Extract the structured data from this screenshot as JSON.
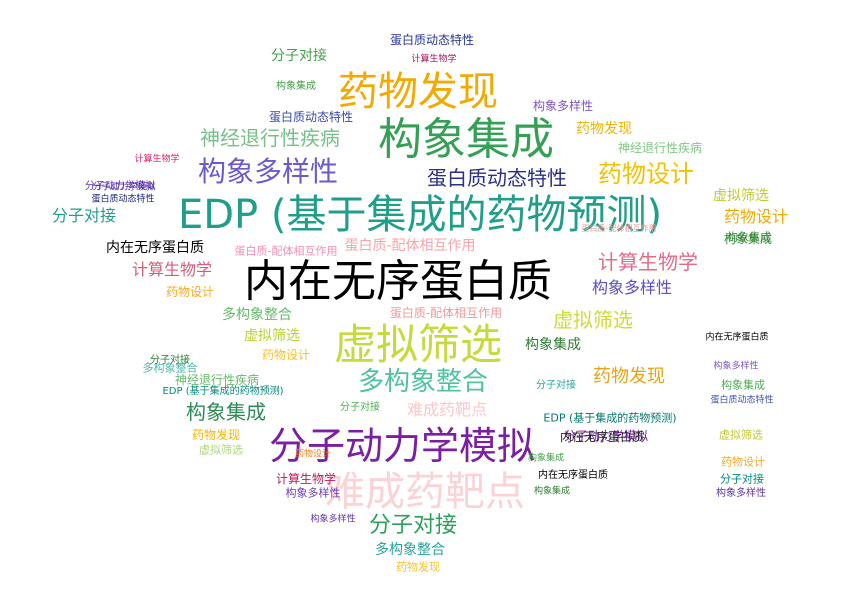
{
  "words": [
    {
      "text": "EDP (基于集成的药物预测)",
      "color": "#1f9e89"
    },
    {
      "text": "内在无序蛋白质",
      "color": "#000000"
    },
    {
      "text": "构象集成",
      "color": "#35a055"
    },
    {
      "text": "药物发现",
      "color": "#f2a900"
    },
    {
      "text": "虚拟筛选",
      "color": "#c7d93d"
    },
    {
      "text": "分子动力学模拟",
      "color": "#7b1fa2"
    },
    {
      "text": "难成药靶点",
      "color": "#fbd3d6"
    },
    {
      "text": "构象多样性",
      "color": "#6a5acd"
    },
    {
      "text": "多构象整合",
      "color": "#4fc3a1"
    },
    {
      "text": "药物设计",
      "color": "#f2c200"
    },
    {
      "text": "计算生物学",
      "color": "#e26b8a"
    },
    {
      "text": "蛋白质动态特性",
      "color": "#2b2f86"
    },
    {
      "text": "神经退行性疾病",
      "color": "#77c08a"
    },
    {
      "text": "分子对接",
      "color": "#2ca05a"
    },
    {
      "text": "蛋白质-配体相互作用",
      "color": "#f6a5ad"
    },
    {
      "text": "药物设计",
      "color": "#f2a900"
    },
    {
      "text": "药物发现",
      "color": "#e8a317"
    },
    {
      "text": "构象集成",
      "color": "#2e8b57"
    },
    {
      "text": "虚拟筛选",
      "color": "#cddc39"
    },
    {
      "text": "构象多样性",
      "color": "#5b4fc2"
    },
    {
      "text": "分子对接",
      "color": "#1f9e89"
    },
    {
      "text": "计算生物学",
      "color": "#d45d79"
    },
    {
      "text": "多构象整合",
      "color": "#66bb6a"
    },
    {
      "text": "内在无序蛋白质",
      "color": "#000000"
    },
    {
      "text": "构象集成",
      "color": "#2e7d32"
    },
    {
      "text": "药物发现",
      "color": "#f4b400"
    },
    {
      "text": "分子对接",
      "color": "#43a047"
    },
    {
      "text": "多构象整合",
      "color": "#26a69a"
    },
    {
      "text": "难成药靶点",
      "color": "#f8c8cc"
    },
    {
      "text": "虚拟筛选",
      "color": "#b5d334"
    },
    {
      "text": "构象多样性",
      "color": "#7e57c2"
    },
    {
      "text": "蛋白质动态特性",
      "color": "#283593"
    },
    {
      "text": "分子动力学模拟",
      "color": "#5e35b1"
    },
    {
      "text": "构象集成",
      "color": "#388e3c"
    },
    {
      "text": "分子动力学模拟",
      "color": "#6a1b9a"
    },
    {
      "text": "神经退行性疾病",
      "color": "#81c784"
    },
    {
      "text": "内在无序蛋白质",
      "color": "#000000"
    },
    {
      "text": "蛋白质-配体相互作用",
      "color": "#ef9a9a"
    },
    {
      "text": "构象集成",
      "color": "#43a047"
    },
    {
      "text": "药物设计",
      "color": "#f9a825"
    },
    {
      "text": "蛋白质动态特性",
      "color": "#3949ab"
    },
    {
      "text": "计算生物学",
      "color": "#c2185b"
    },
    {
      "text": "构象多样性",
      "color": "#673ab7"
    },
    {
      "text": "分子动力学模拟",
      "color": "#512da8"
    },
    {
      "text": "蛋白质-配体相互作用",
      "color": "#f48fb1"
    },
    {
      "text": "虚拟筛选",
      "color": "#c0ca33"
    },
    {
      "text": "药物设计",
      "color": "#fbc02d"
    },
    {
      "text": "构象集成",
      "color": "#4caf50"
    },
    {
      "text": "分子对接",
      "color": "#00897b"
    },
    {
      "text": "EDP (基于集成的药物预测)",
      "color": "#00796b"
    },
    {
      "text": "内在无序蛋白质",
      "color": "#212121"
    },
    {
      "text": "药物发现",
      "color": "#ffb300"
    },
    {
      "text": "计算生物学",
      "color": "#e91e63"
    },
    {
      "text": "构象多样性",
      "color": "#5e35b1"
    },
    {
      "text": "多构象整合",
      "color": "#4db6ac"
    },
    {
      "text": "分子对接",
      "color": "#2e7d32"
    },
    {
      "text": "构象集成",
      "color": "#388e3c"
    },
    {
      "text": "蛋白质动态特性",
      "color": "#1a237e"
    },
    {
      "text": "EDP (基于集成的药物预测)",
      "color": "#00897b"
    },
    {
      "text": "虚拟筛选",
      "color": "#aed581"
    },
    {
      "text": "构象集成",
      "color": "#2e7d32"
    },
    {
      "text": "神经退行性疾病",
      "color": "#66bb6a"
    },
    {
      "text": "内在无序蛋白质",
      "color": "#000000"
    },
    {
      "text": "分子对接",
      "color": "#26a69a"
    },
    {
      "text": "构象多样性",
      "color": "#7e57c2"
    },
    {
      "text": "药物设计",
      "color": "#f9a825"
    },
    {
      "text": "虚拟筛选",
      "color": "#c0ca33"
    },
    {
      "text": "药物发现",
      "color": "#fbc02d"
    },
    {
      "text": "蛋白质动态特性",
      "color": "#3f51b5"
    },
    {
      "text": "构象集成",
      "color": "#43a047"
    },
    {
      "text": "分子对接",
      "color": "#4caf50"
    },
    {
      "text": "构象多样性",
      "color": "#5e35b1"
    },
    {
      "text": "药物设计",
      "color": "#f57f17"
    },
    {
      "text": "蛋白质-配体相互作用",
      "color": "#ef9a9a"
    },
    {
      "text": "计算生物学",
      "color": "#ad1457"
    }
  ]
}
